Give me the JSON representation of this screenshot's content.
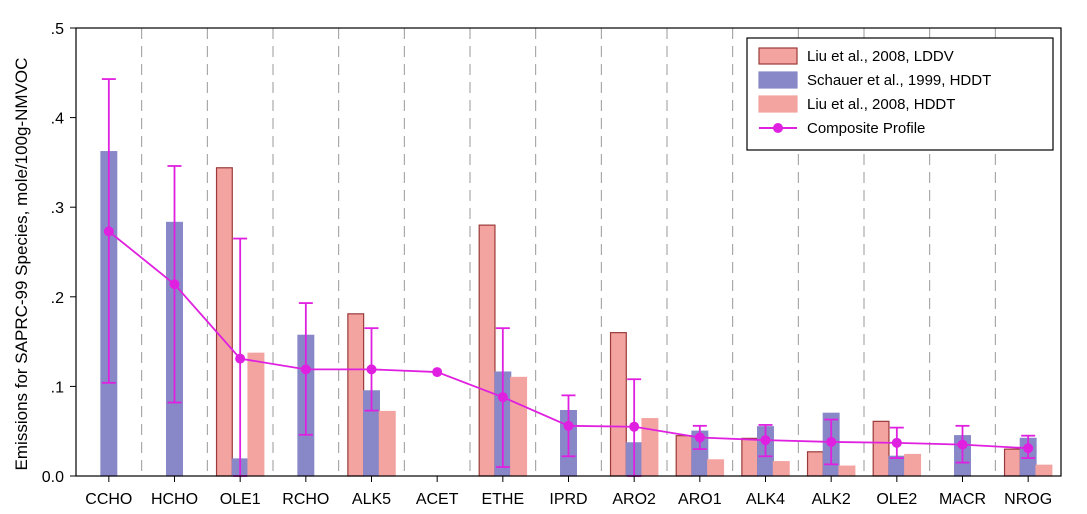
{
  "chart_data": {
    "type": "bar",
    "ylabel": "Emissions for SAPRC-99 Species, mole/100g-NMVOC",
    "xlabel": "",
    "ylim": [
      0,
      0.5
    ],
    "yticks": [
      0,
      0.1,
      0.2,
      0.3,
      0.4,
      0.5
    ],
    "ytick_labels": [
      "0.0",
      ".1",
      ".2",
      ".3",
      ".4",
      ".5"
    ],
    "grid": "vertical dashed separators between categories",
    "legend_position": "top-right",
    "categories": [
      "CCHO",
      "HCHO",
      "OLE1",
      "RCHO",
      "ALK5",
      "ACET",
      "ETHE",
      "IPRD",
      "ARO2",
      "ARO1",
      "ALK4",
      "ALK2",
      "OLE2",
      "MACR",
      "NROG"
    ],
    "series": [
      {
        "name": "Liu et al., 2008, LDDV",
        "kind": "bar",
        "color": "#f4a4a0",
        "stroke": "#9a3a3a",
        "values": [
          null,
          null,
          0.344,
          null,
          0.181,
          null,
          0.28,
          null,
          0.16,
          0.045,
          0.042,
          0.027,
          0.061,
          null,
          0.03
        ]
      },
      {
        "name": "Schauer et al., 1999, HDDT",
        "kind": "bar",
        "color": "#8888c8",
        "stroke": "#8888c8",
        "values": [
          0.362,
          0.283,
          0.019,
          0.157,
          0.095,
          null,
          0.116,
          0.073,
          0.037,
          0.05,
          0.055,
          0.07,
          0.022,
          0.045,
          0.042
        ]
      },
      {
        "name": "Liu et al., 2008, HDDT",
        "kind": "bar",
        "color": "#f4a4a0",
        "stroke": "#f4a4a0",
        "values": [
          null,
          null,
          0.137,
          null,
          0.072,
          null,
          0.11,
          null,
          0.064,
          0.018,
          0.016,
          0.011,
          0.024,
          null,
          0.012
        ]
      },
      {
        "name": "Composite Profile",
        "kind": "line",
        "color": "#e020e0",
        "values": [
          0.273,
          0.214,
          0.131,
          0.119,
          0.119,
          0.116,
          0.088,
          0.056,
          0.055,
          0.043,
          0.04,
          0.038,
          0.037,
          0.035,
          0.031
        ],
        "error_low": [
          0.104,
          0.082,
          0.0,
          0.046,
          0.073,
          null,
          0.01,
          0.022,
          0.0,
          0.03,
          0.022,
          0.013,
          0.02,
          0.015,
          0.02
        ],
        "error_high": [
          0.443,
          0.346,
          0.265,
          0.193,
          0.165,
          null,
          0.165,
          0.09,
          0.108,
          0.056,
          0.057,
          0.063,
          0.054,
          0.056,
          0.045
        ]
      }
    ]
  }
}
